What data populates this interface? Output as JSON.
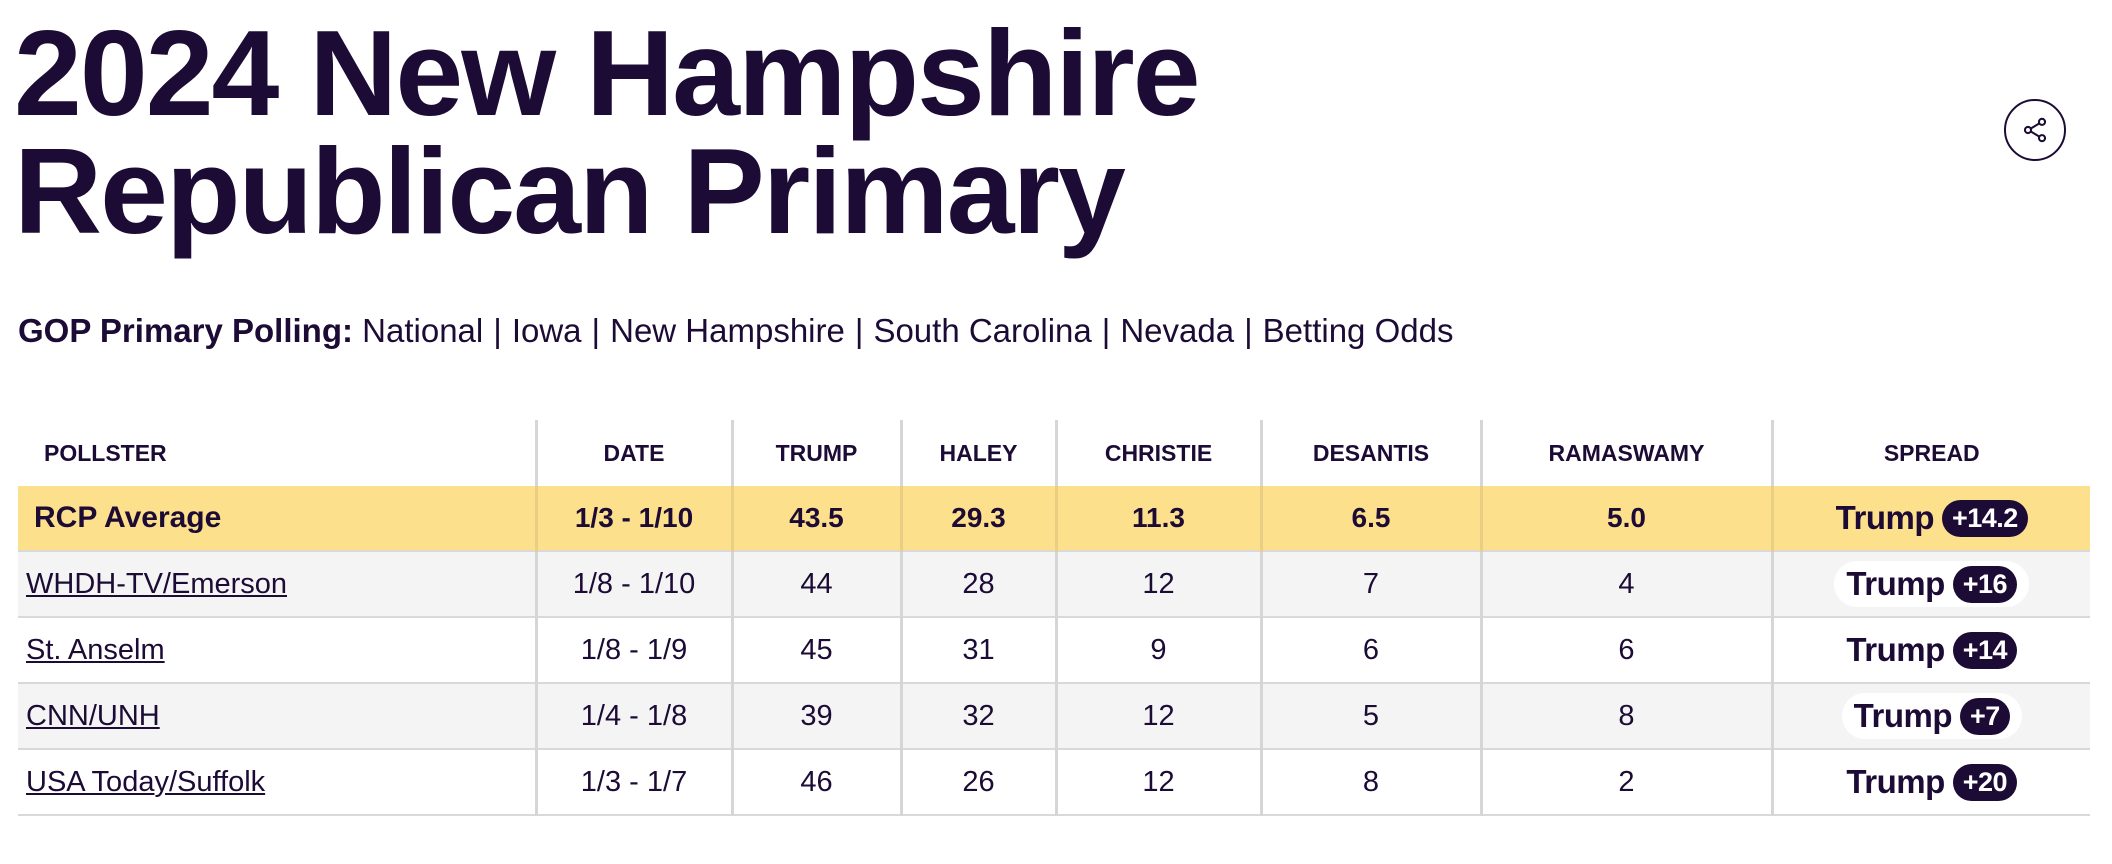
{
  "page": {
    "title_line1": "2024 New Hampshire",
    "title_line2": "Republican Primary"
  },
  "nav": {
    "lead": "GOP Primary Polling:",
    "links": [
      "National",
      "Iowa",
      "New Hampshire",
      "South Carolina",
      "Nevada",
      "Betting Odds"
    ],
    "separator": "|"
  },
  "table": {
    "headers": [
      "POLLSTER",
      "DATE",
      "TRUMP",
      "HALEY",
      "CHRISTIE",
      "DESANTIS",
      "RAMASWAMY",
      "SPREAD"
    ],
    "average": {
      "pollster": "RCP Average",
      "date": "1/3 - 1/10",
      "trump": "43.5",
      "haley": "29.3",
      "christie": "11.3",
      "desantis": "6.5",
      "ramaswamy": "5.0",
      "spread_leader": "Trump",
      "spread_value": "+14.2"
    },
    "rows": [
      {
        "pollster": "WHDH-TV/Emerson",
        "date": "1/8 - 1/10",
        "trump": "44",
        "haley": "28",
        "christie": "12",
        "desantis": "7",
        "ramaswamy": "4",
        "spread_leader": "Trump",
        "spread_value": "+16"
      },
      {
        "pollster": "St. Anselm",
        "date": "1/8 - 1/9",
        "trump": "45",
        "haley": "31",
        "christie": "9",
        "desantis": "6",
        "ramaswamy": "6",
        "spread_leader": "Trump",
        "spread_value": "+14"
      },
      {
        "pollster": "CNN/UNH",
        "date": "1/4 - 1/8",
        "trump": "39",
        "haley": "32",
        "christie": "12",
        "desantis": "5",
        "ramaswamy": "8",
        "spread_leader": "Trump",
        "spread_value": "+7"
      },
      {
        "pollster": "USA Today/Suffolk",
        "date": "1/3 - 1/7",
        "trump": "46",
        "haley": "26",
        "christie": "12",
        "desantis": "8",
        "ramaswamy": "2",
        "spread_leader": "Trump",
        "spread_value": "+20"
      }
    ]
  },
  "colors": {
    "text": "#1c0b35",
    "average_row": "#fde08c",
    "stripe_row": "#f4f4f4",
    "badge": "#1c0b35"
  },
  "icons": {
    "share": "share-icon"
  }
}
